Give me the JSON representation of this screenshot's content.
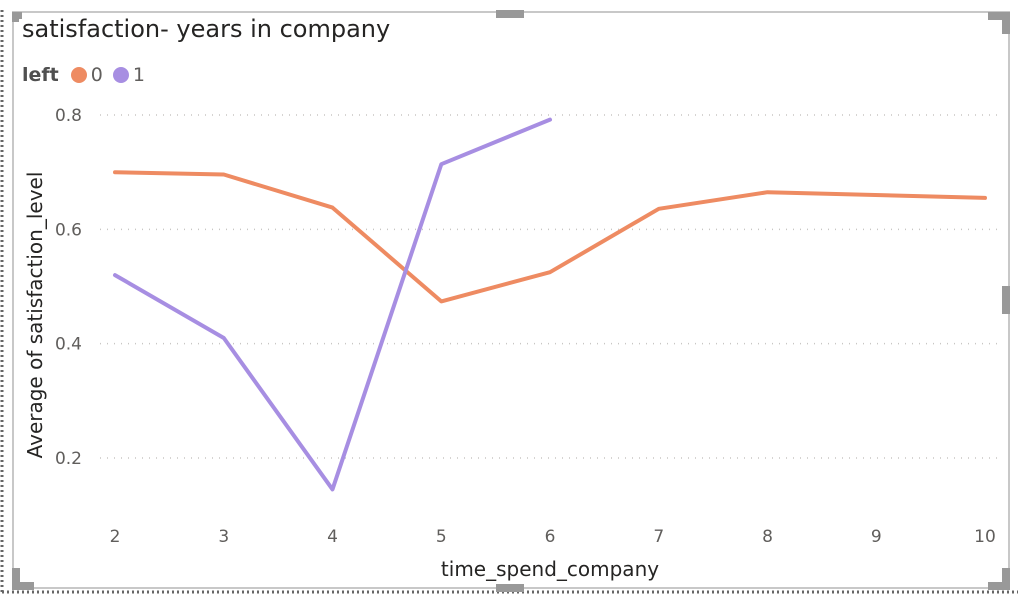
{
  "chart_data": {
    "type": "line",
    "title": "satisfaction- years in company",
    "xlabel": "time_spend_company",
    "ylabel": "Average of satisfaction_level",
    "legend": {
      "title": "left",
      "position": "top-left"
    },
    "x": [
      2,
      3,
      4,
      5,
      6,
      7,
      8,
      9,
      10
    ],
    "x_tick_labels": [
      "2",
      "3",
      "4",
      "5",
      "6",
      "7",
      "8",
      "9",
      "10"
    ],
    "y_ticks": [
      0.2,
      0.4,
      0.6,
      0.8
    ],
    "y_tick_labels": [
      "0.2",
      "0.4",
      "0.6",
      "0.8"
    ],
    "ylim": [
      0.08,
      0.82
    ],
    "grid": true,
    "series": [
      {
        "name": "0",
        "color": "#EE8B62",
        "x": [
          2,
          3,
          4,
          5,
          6,
          7,
          8,
          10
        ],
        "values": [
          0.7,
          0.696,
          0.638,
          0.474,
          0.525,
          0.636,
          0.665,
          0.655
        ]
      },
      {
        "name": "1",
        "color": "#A78EE2",
        "x": [
          2,
          3,
          4,
          5,
          6
        ],
        "values": [
          0.52,
          0.41,
          0.145,
          0.714,
          0.792
        ]
      }
    ]
  }
}
